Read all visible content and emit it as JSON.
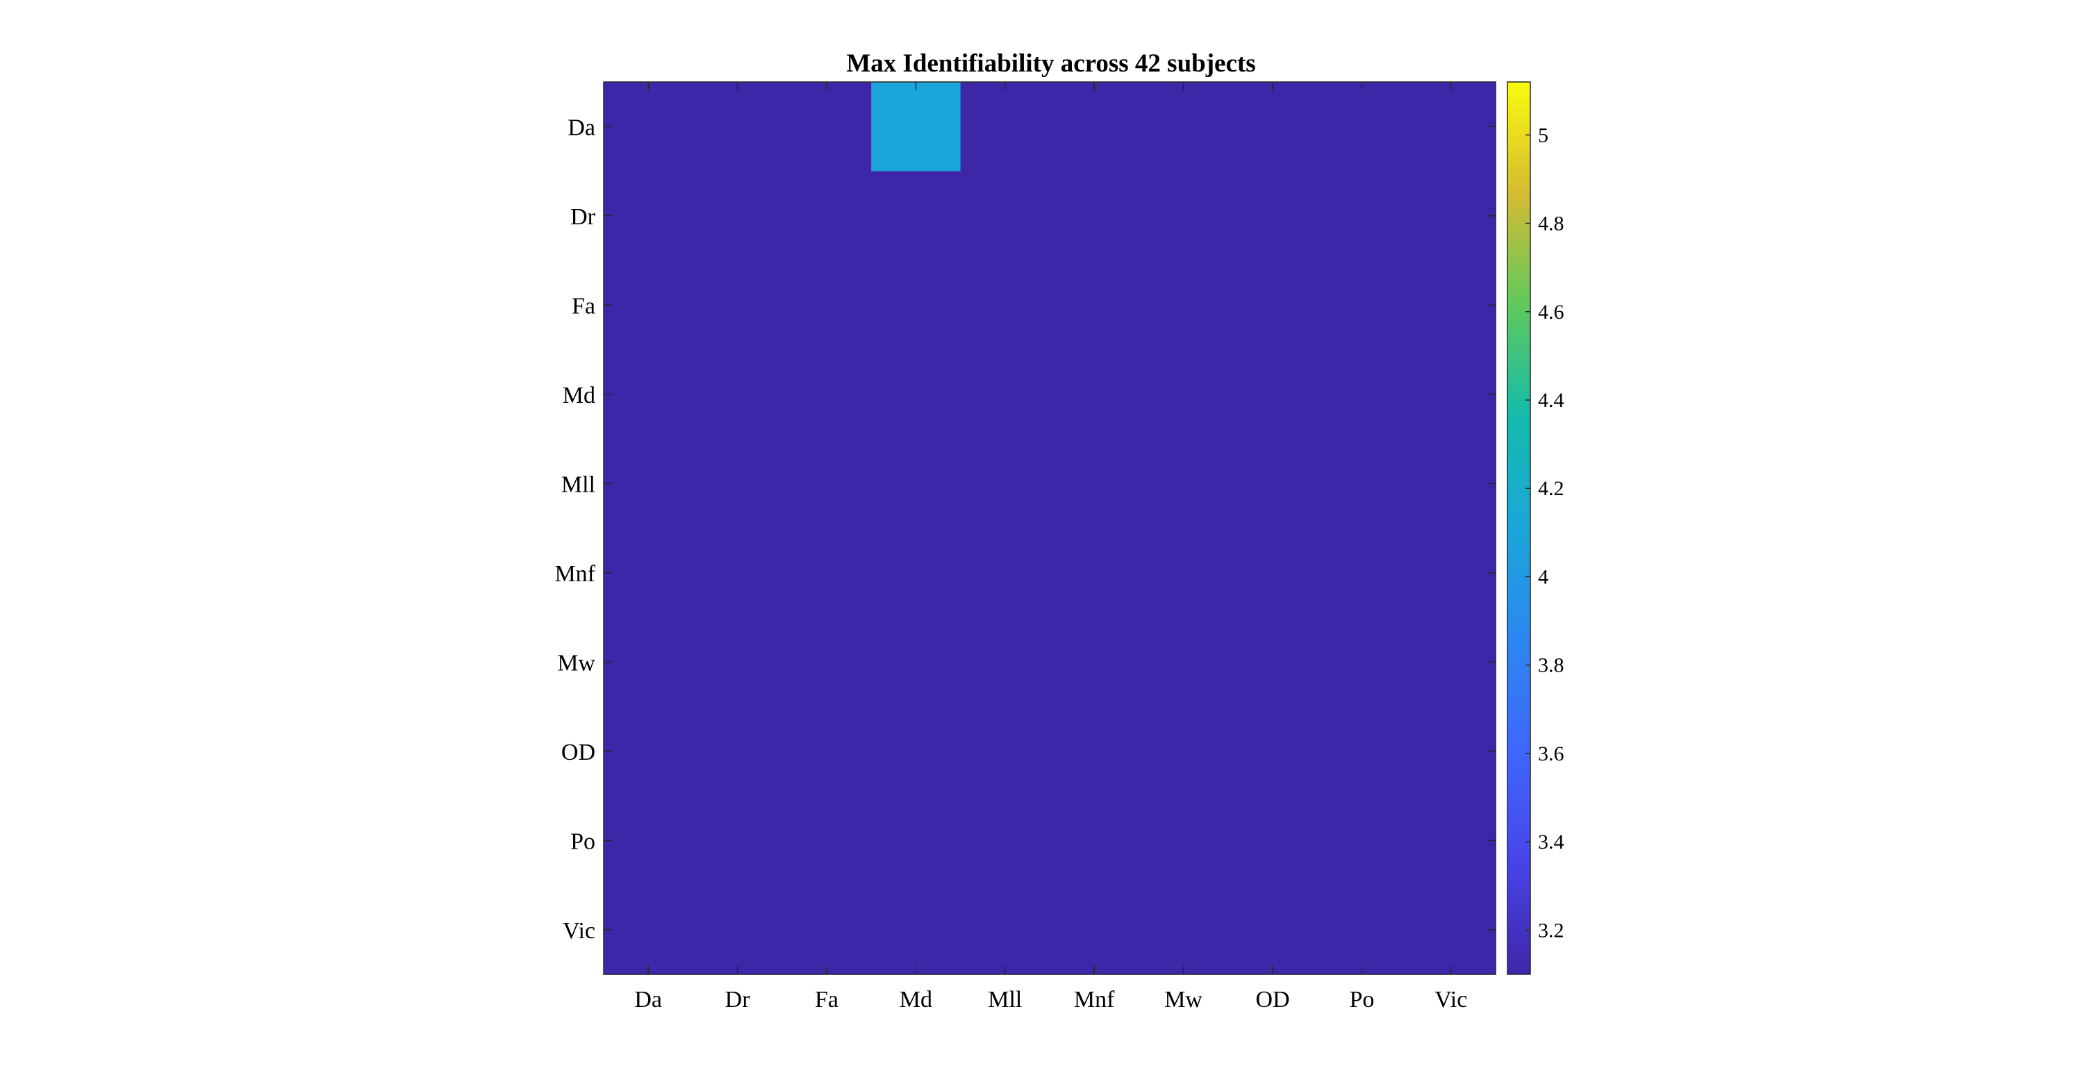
{
  "chart_data": {
    "type": "heatmap",
    "title": "Max Identifiability across 42 subjects",
    "x_categories": [
      "Da",
      "Dr",
      "Fa",
      "Md",
      "Mll",
      "Mnf",
      "Mw",
      "OD",
      "Po",
      "Vic"
    ],
    "y_categories": [
      "Da",
      "Dr",
      "Fa",
      "Md",
      "Mll",
      "Mnf",
      "Mw",
      "OD",
      "Po",
      "Vic"
    ],
    "values": [
      [
        3.1,
        3.1,
        3.1,
        4.1,
        3.1,
        3.1,
        3.1,
        3.1,
        3.1,
        3.1
      ],
      [
        3.1,
        3.1,
        3.1,
        3.1,
        3.1,
        3.1,
        3.1,
        3.1,
        3.1,
        3.1
      ],
      [
        3.1,
        3.1,
        3.1,
        3.1,
        3.1,
        3.1,
        3.1,
        3.1,
        3.1,
        3.1
      ],
      [
        3.1,
        3.1,
        3.1,
        3.1,
        3.1,
        3.1,
        3.1,
        3.1,
        3.1,
        3.1
      ],
      [
        3.1,
        3.1,
        3.1,
        3.1,
        3.1,
        3.1,
        3.1,
        3.1,
        3.1,
        3.1
      ],
      [
        3.1,
        3.1,
        3.1,
        3.1,
        3.1,
        3.1,
        3.1,
        3.1,
        3.1,
        3.1
      ],
      [
        3.1,
        3.1,
        3.1,
        3.1,
        3.1,
        3.1,
        3.1,
        3.1,
        3.1,
        3.1
      ],
      [
        3.1,
        3.1,
        3.1,
        3.1,
        3.1,
        3.1,
        3.1,
        3.1,
        3.1,
        3.1
      ],
      [
        3.1,
        3.1,
        3.1,
        3.1,
        3.1,
        3.1,
        3.1,
        3.1,
        3.1,
        3.1
      ],
      [
        3.1,
        3.1,
        3.1,
        3.1,
        3.1,
        3.1,
        3.1,
        3.1,
        3.1,
        3.1
      ]
    ],
    "colorbar": {
      "range": [
        3.1,
        5.12
      ],
      "ticks": [
        3.2,
        3.4,
        3.6,
        3.8,
        4,
        4.2,
        4.4,
        4.6,
        4.8,
        5
      ],
      "tick_labels": [
        "3.2",
        "3.4",
        "3.6",
        "3.8",
        "4",
        "4.2",
        "4.4",
        "4.6",
        "4.8",
        "5"
      ],
      "colormap": "parula",
      "placement": "right"
    },
    "grid": false,
    "colors": {
      "low": "#3e26a8",
      "cell_highlight": "#1ac0b3",
      "high": "#f9fb0e"
    }
  }
}
